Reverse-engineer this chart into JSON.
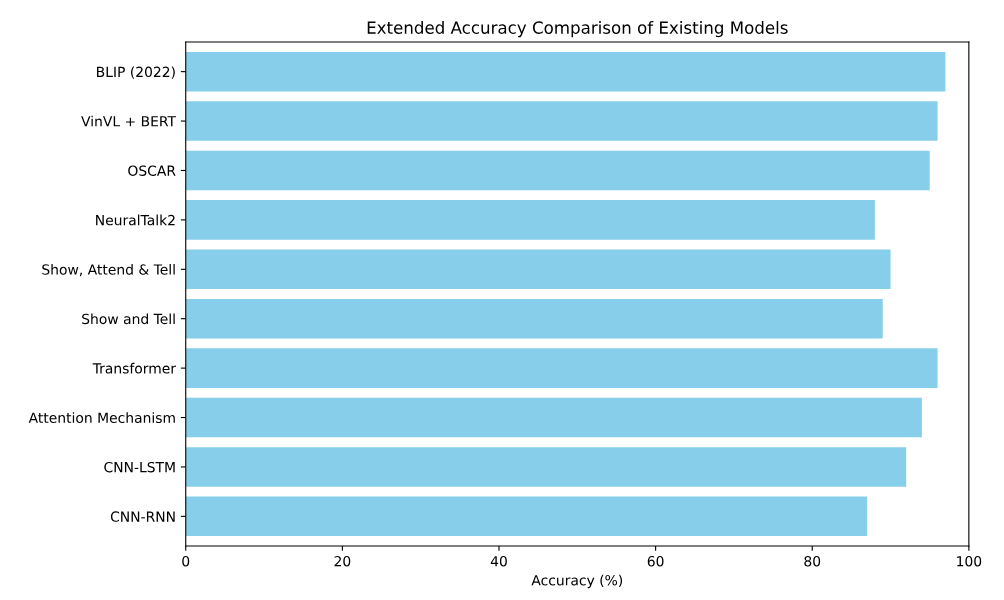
{
  "chart_data": {
    "type": "bar",
    "orientation": "horizontal",
    "title": "Extended Accuracy Comparison of Existing Models",
    "xlabel": "Accuracy (%)",
    "categories": [
      "BLIP (2022)",
      "VinVL + BERT",
      "OSCAR",
      "NeuralTalk2",
      "Show, Attend & Tell",
      "Show and Tell",
      "Transformer",
      "Attention Mechanism",
      "CNN-LSTM",
      "CNN-RNN"
    ],
    "values": [
      97,
      96,
      95,
      88,
      90,
      89,
      96,
      94,
      92,
      87
    ],
    "color": "#87ceeb",
    "xlim": [
      0,
      100
    ],
    "xticks": [
      0,
      20,
      40,
      60,
      80,
      100
    ],
    "grid": false
  }
}
